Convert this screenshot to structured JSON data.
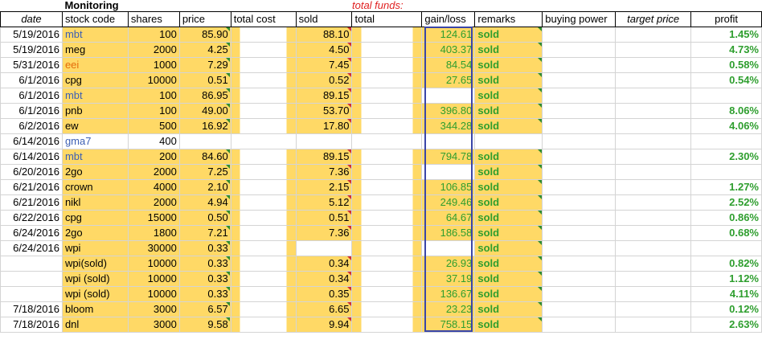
{
  "title": "Monitoring",
  "total_funds_label": "total funds:",
  "headers": [
    "date",
    "stock code",
    "shares",
    "price",
    "total cost",
    "sold",
    "total",
    "gain/loss",
    "remarks",
    "buying power",
    "target price",
    "profit"
  ],
  "rows": [
    {
      "date": "5/19/2016",
      "code": "mbt",
      "code_color": "blue",
      "shares": "100",
      "price": "85.90",
      "sold": "88.10",
      "gain": "124.61",
      "remarks": "sold",
      "profit": "1.45%"
    },
    {
      "date": "5/19/2016",
      "code": "meg",
      "code_color": "",
      "shares": "2000",
      "price": "4.25",
      "sold": "4.50",
      "gain": "403.37",
      "remarks": "sold",
      "profit": "4.73%"
    },
    {
      "date": "5/31/2016",
      "code": "eei",
      "code_color": "orange",
      "shares": "1000",
      "price": "7.29",
      "sold": "7.45",
      "gain": "84.54",
      "remarks": "sold",
      "profit": "0.58%"
    },
    {
      "date": "6/1/2016",
      "code": "cpg",
      "code_color": "",
      "shares": "10000",
      "price": "0.51",
      "sold": "0.52",
      "gain": "27.65",
      "remarks": "sold",
      "profit": "0.54%"
    },
    {
      "date": "6/1/2016",
      "code": "mbt",
      "code_color": "blue",
      "shares": "100",
      "price": "86.95",
      "sold": "89.15",
      "gain": "",
      "remarks": "sold",
      "profit": ""
    },
    {
      "date": "6/1/2016",
      "code": "pnb",
      "code_color": "",
      "shares": "100",
      "price": "49.00",
      "sold": "53.70",
      "gain": "396.80",
      "remarks": "sold",
      "profit": "8.06%"
    },
    {
      "date": "6/2/2016",
      "code": "ew",
      "code_color": "",
      "shares": "500",
      "price": "16.92",
      "sold": "17.80",
      "gain": "344.28",
      "remarks": "sold",
      "profit": "4.06%"
    },
    {
      "date": "6/14/2016",
      "code": "gma7",
      "code_color": "blue",
      "shares": "400",
      "price": "",
      "sold": "",
      "gain": "",
      "remarks": "",
      "profit": "",
      "white": true
    },
    {
      "date": "6/14/2016",
      "code": "mbt",
      "code_color": "blue",
      "shares": "200",
      "price": "84.60",
      "sold": "89.15",
      "gain": "794.78",
      "remarks": "sold",
      "profit": "2.30%"
    },
    {
      "date": "6/20/2016",
      "code": "2go",
      "code_color": "",
      "shares": "2000",
      "price": "7.25",
      "sold": "7.36",
      "gain": "",
      "remarks": "sold",
      "profit": ""
    },
    {
      "date": "6/21/2016",
      "code": "crown",
      "code_color": "",
      "shares": "4000",
      "price": "2.10",
      "sold": "2.15",
      "gain": "106.85",
      "remarks": "sold",
      "profit": "1.27%"
    },
    {
      "date": "6/21/2016",
      "code": "nikl",
      "code_color": "",
      "shares": "2000",
      "price": "4.94",
      "sold": "5.12",
      "gain": "249.46",
      "remarks": "sold",
      "profit": "2.52%"
    },
    {
      "date": "6/22/2016",
      "code": "cpg",
      "code_color": "",
      "shares": "15000",
      "price": "0.50",
      "sold": "0.51",
      "gain": "64.67",
      "remarks": "sold",
      "profit": "0.86%"
    },
    {
      "date": "6/24/2016",
      "code": "2go",
      "code_color": "",
      "shares": "1800",
      "price": "7.21",
      "sold": "7.36",
      "gain": "186.58",
      "remarks": "sold",
      "profit": "0.68%"
    },
    {
      "date": "6/24/2016",
      "code": "wpi",
      "code_color": "",
      "shares": "30000",
      "price": "0.33",
      "sold": "",
      "gain": "",
      "remarks": "sold",
      "profit": ""
    },
    {
      "date": "",
      "code": "wpi(sold)",
      "code_color": "",
      "shares": "10000",
      "price": "0.33",
      "sold": "0.34",
      "gain": "26.93",
      "remarks": "sold",
      "profit": "0.82%"
    },
    {
      "date": "",
      "code": "wpi (sold)",
      "code_color": "",
      "shares": "10000",
      "price": "0.33",
      "sold": "0.34",
      "gain": "37.19",
      "remarks": "sold",
      "profit": "1.12%"
    },
    {
      "date": "",
      "code": "wpi (sold)",
      "code_color": "",
      "shares": "10000",
      "price": "0.33",
      "sold": "0.35",
      "gain": "136.67",
      "remarks": "sold",
      "profit": "4.11%"
    },
    {
      "date": "7/18/2016",
      "code": "bloom",
      "code_color": "",
      "shares": "3000",
      "price": "6.57",
      "sold": "6.65",
      "gain": "23.23",
      "remarks": "sold",
      "profit": "0.12%"
    },
    {
      "date": "7/18/2016",
      "code": "dnl",
      "code_color": "",
      "shares": "3000",
      "price": "9.58",
      "sold": "9.94",
      "gain": "758.15",
      "remarks": "sold",
      "profit": "2.63%"
    }
  ]
}
